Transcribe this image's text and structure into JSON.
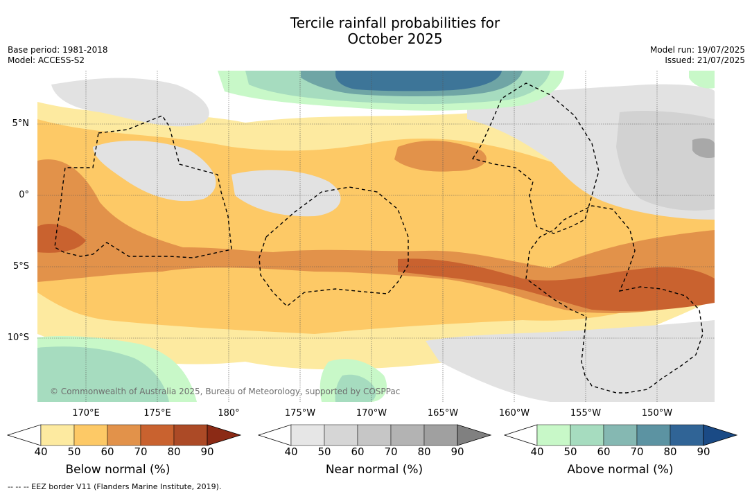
{
  "title_line1": "Tercile rainfall probabilities for",
  "title_line2": "October 2025",
  "base_period": "Base period: 1981-2018",
  "model": "Model: ACCESS-S2",
  "model_run": "Model run: 19/07/2025",
  "issued": "Issued: 21/07/2025",
  "credit": "© Commonwealth of Australia 2025, Bureau of Meteorology, supported by COSPPac",
  "footnote": "-- -- -- EEZ border V11 (Flanders Marine Institute, 2019).",
  "lat_labels": [
    "5°N",
    "0°",
    "5°S",
    "10°S"
  ],
  "lon_labels": [
    "170°E",
    "175°E",
    "180°",
    "175°W",
    "170°W",
    "165°W",
    "160°W",
    "155°W",
    "150°W"
  ],
  "colorbars": [
    {
      "title": "Below normal (%)",
      "ticks": [
        "40",
        "50",
        "60",
        "70",
        "80",
        "90"
      ],
      "colors": [
        "#fdeaa0",
        "#fdc966",
        "#e2924a",
        "#c9622f",
        "#ac4a26",
        "#8b2a15"
      ]
    },
    {
      "title": "Near normal (%)",
      "ticks": [
        "40",
        "50",
        "60",
        "70",
        "80",
        "90"
      ],
      "colors": [
        "#e6e6e6",
        "#d6d6d6",
        "#c6c6c6",
        "#b3b3b3",
        "#a0a0a0",
        "#808080"
      ]
    },
    {
      "title": "Above normal (%)",
      "ticks": [
        "40",
        "50",
        "60",
        "70",
        "80",
        "90"
      ],
      "colors": [
        "#c8f8c8",
        "#a6dcbf",
        "#85b8b2",
        "#5c93a2",
        "#306496",
        "#1a4a85"
      ]
    }
  ],
  "colors": {
    "below_50": "#fdeaa0",
    "below_60": "#fdc966",
    "below_70": "#e2924a",
    "below_80": "#c9622f",
    "near_50": "#e2e2e2",
    "near_60": "#d2d2d2",
    "near_70": "#a8a8a8",
    "above_50": "#c8f8c8",
    "above_60": "#a6dcbf",
    "above_70": "#6fa5a5",
    "above_80": "#3d7598",
    "eez": "#000000"
  }
}
